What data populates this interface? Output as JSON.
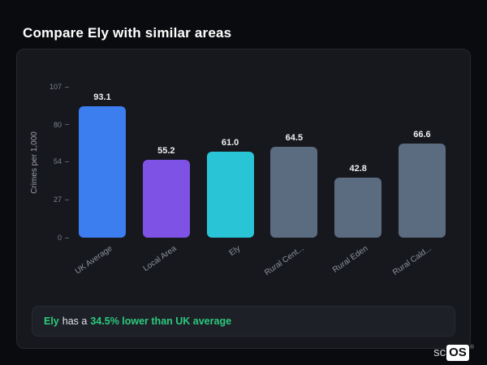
{
  "page_title": "Compare Ely with similar areas",
  "colors": {
    "background": "#0a0b0e",
    "card": "#16181d",
    "note_box": "#1d2127",
    "accent_green": "#2dc97e",
    "bar_blue": "#3c7df0",
    "bar_purple": "#7e52e4",
    "bar_cyan": "#29c5d6",
    "bar_gray": "#5b6b80"
  },
  "chart_data": {
    "type": "bar",
    "title": "",
    "xlabel": "",
    "ylabel": "Crimes per 1,000",
    "categories": [
      "UK Average",
      "Local Area",
      "Ely",
      "Rural Cent...",
      "Rural Eden",
      "Rural Cald..."
    ],
    "values": [
      93.1,
      55.2,
      61.0,
      64.5,
      42.8,
      66.6
    ],
    "value_labels": [
      "93.1",
      "55.2",
      "61.0",
      "64.5",
      "42.8",
      "66.6"
    ],
    "bar_colors": [
      "#3c7df0",
      "#7e52e4",
      "#29c5d6",
      "#5b6b80",
      "#5b6b80",
      "#5b6b80"
    ],
    "yticks": [
      0,
      27,
      54,
      80,
      107
    ],
    "ylim": [
      0,
      107
    ],
    "grid": false,
    "legend": false
  },
  "note": {
    "subject": "Ely",
    "middle": "has a",
    "highlight": "34.5% lower than UK average"
  },
  "logo": {
    "prefix": "sc",
    "suffix": "OS",
    "registered": "®"
  }
}
